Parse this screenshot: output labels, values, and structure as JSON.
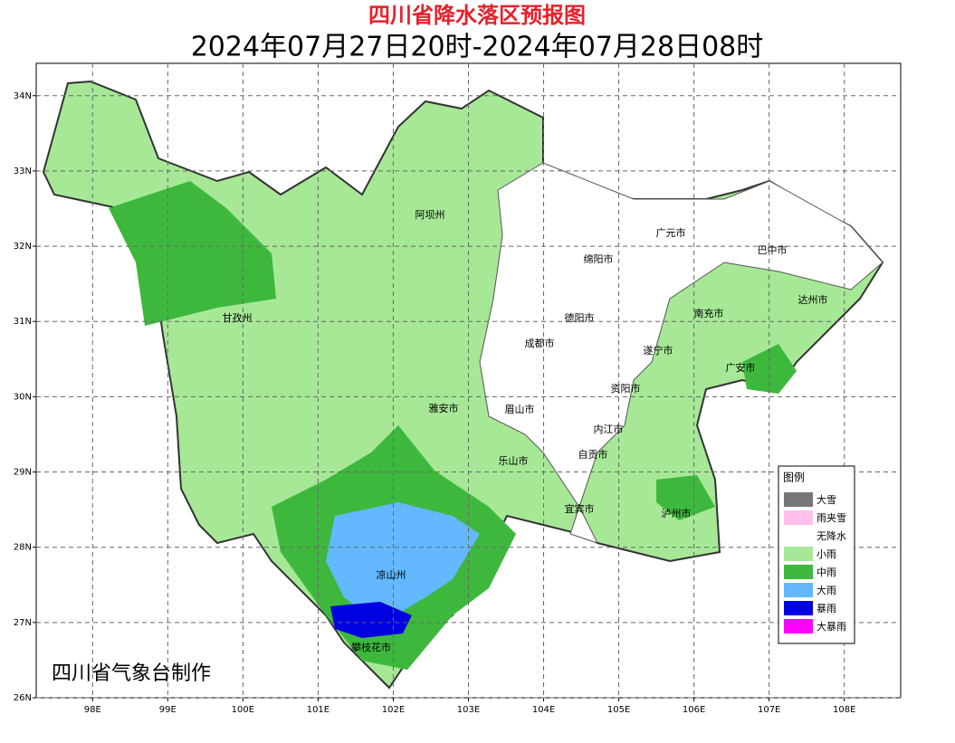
{
  "header": {
    "title": "四川省降水落区预报图",
    "subtitle": "2024年07月27日20时-2024年07月28日08时"
  },
  "map": {
    "xlim": [
      97.25,
      108.75
    ],
    "ylim": [
      26,
      34.43
    ],
    "grid": true,
    "xticks": [
      {
        "value": 98,
        "label": "98E"
      },
      {
        "value": 99,
        "label": "99E"
      },
      {
        "value": 100,
        "label": "100E"
      },
      {
        "value": 101,
        "label": "101E"
      },
      {
        "value": 102,
        "label": "102E"
      },
      {
        "value": 103,
        "label": "103E"
      },
      {
        "value": 104,
        "label": "104E"
      },
      {
        "value": 105,
        "label": "105E"
      },
      {
        "value": 106,
        "label": "106E"
      },
      {
        "value": 107,
        "label": "107E"
      },
      {
        "value": 108,
        "label": "108E"
      }
    ],
    "yticks": [
      {
        "value": 26,
        "label": "26N"
      },
      {
        "value": 27,
        "label": "27N"
      },
      {
        "value": 28,
        "label": "28N"
      },
      {
        "value": 29,
        "label": "29N"
      },
      {
        "value": 30,
        "label": "30N"
      },
      {
        "value": 31,
        "label": "31N"
      },
      {
        "value": 32,
        "label": "32N"
      },
      {
        "value": 33,
        "label": "33N"
      },
      {
        "value": 34,
        "label": "34N"
      }
    ],
    "cities": [
      "阿坝州",
      "甘孜州",
      "广元市",
      "巴中市",
      "绵阳市",
      "达州市",
      "南充市",
      "德阳市",
      "成都市",
      "遂宁市",
      "广安市",
      "资阳市",
      "雅安市",
      "眉山市",
      "内江市",
      "自贡市",
      "乐山市",
      "宜宾市",
      "泸州市",
      "凉山州",
      "攀枝花市"
    ]
  },
  "legend": {
    "title": "图例",
    "items": [
      {
        "label": "大雪",
        "color": "#767676"
      },
      {
        "label": "雨夹雪",
        "color": "#ffc0ee"
      },
      {
        "label": "无降水",
        "color": "#ffffff"
      },
      {
        "label": "小雨",
        "color": "#a6e896"
      },
      {
        "label": "中雨",
        "color": "#3db83d"
      },
      {
        "label": "大雨",
        "color": "#63b8ff"
      },
      {
        "label": "暴雨",
        "color": "#0000e0"
      },
      {
        "label": "大暴雨",
        "color": "#ff00ff"
      }
    ]
  },
  "credit": "四川省气象台制作"
}
